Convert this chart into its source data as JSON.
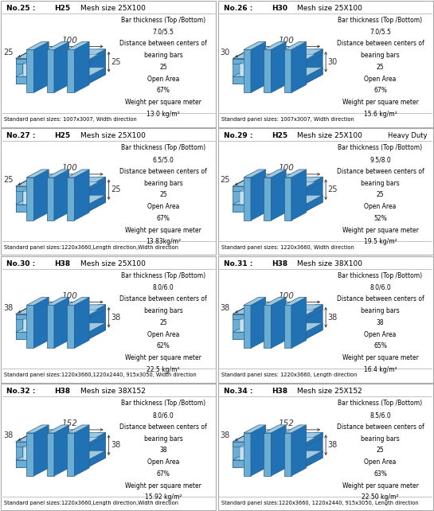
{
  "panels": [
    {
      "no": "No.25",
      "h": "H25",
      "mesh": "Mesh size 25X100",
      "heavy_duty": false,
      "bar_thickness": "7.0/5.5",
      "center_distance": "25",
      "open_area": "67%",
      "weight": "13.0 kg/m²",
      "standard": "Standard panel sizes: 1007x3007, Width direction",
      "dim_side": "25",
      "dim_long": "100",
      "row": 0,
      "col": 0
    },
    {
      "no": "No.26",
      "h": "H30",
      "mesh": "Mesh size 25X100",
      "heavy_duty": false,
      "bar_thickness": "7.0/5.5",
      "center_distance": "25",
      "open_area": "67%",
      "weight": "15.6 kg/m²",
      "standard": "Standard panel sizes: 1007x3007, Width direction",
      "dim_side": "30",
      "dim_long": "100",
      "row": 0,
      "col": 1
    },
    {
      "no": "No.27",
      "h": "H25",
      "mesh": "Mesh size 25X100",
      "heavy_duty": false,
      "bar_thickness": "6.5/5.0",
      "center_distance": "25",
      "open_area": "67%",
      "weight": "13.83kg/m²",
      "standard": "Standard panel sizes:1220x3660,Length direction,Width direction",
      "dim_side": "25",
      "dim_long": "100",
      "row": 1,
      "col": 0
    },
    {
      "no": "No.29",
      "h": "H25",
      "mesh": "Mesh size 25X100",
      "heavy_duty": true,
      "bar_thickness": "9.5/8.0",
      "center_distance": "25",
      "open_area": "52%",
      "weight": "19.5 kg/m²",
      "standard": "Standard panel sizes: 1220x3660, Width direction",
      "dim_side": "25",
      "dim_long": "100",
      "row": 1,
      "col": 1
    },
    {
      "no": "No.30",
      "h": "H38",
      "mesh": "Mesh size 25X100",
      "heavy_duty": false,
      "bar_thickness": "8.0/6.0",
      "center_distance": "25",
      "open_area": "62%",
      "weight": "22.5 kg/m²",
      "standard": "Standard panel sizes:1220x3660,1220x2440, 915x3050, Width direction",
      "dim_side": "38",
      "dim_long": "100",
      "row": 2,
      "col": 0
    },
    {
      "no": "No.31",
      "h": "H38",
      "mesh": "Mesh size 38X100",
      "heavy_duty": false,
      "bar_thickness": "8.0/6.0",
      "center_distance": "38",
      "open_area": "65%",
      "weight": "16.4 kg/m²",
      "standard": "Standard panel sizes: 1220x3660, Length direction",
      "dim_side": "38",
      "dim_long": "100",
      "row": 2,
      "col": 1
    },
    {
      "no": "No.32",
      "h": "H38",
      "mesh": "Mesh size 38X152",
      "heavy_duty": false,
      "bar_thickness": "8.0/6.0",
      "center_distance": "38",
      "open_area": "67%",
      "weight": "15.92 kg/m²",
      "standard": "Standard panel sizes:1220x3660,Length direction,Width direction",
      "dim_side": "38",
      "dim_long": "152",
      "row": 3,
      "col": 0
    },
    {
      "no": "No.34",
      "h": "H38",
      "mesh": "Mesh size 25X152",
      "heavy_duty": false,
      "bar_thickness": "8.5/6.0",
      "center_distance": "25",
      "open_area": "63%",
      "weight": "22.50 kg/m²",
      "standard": "Standard panel sizes:1220x3660, 1220x2440, 915x3050, Length direction",
      "dim_side": "38",
      "dim_long": "152",
      "row": 3,
      "col": 1
    }
  ],
  "bg_color": "#ffffff",
  "face_color": "#6aaed6",
  "top_color": "#9ecae1",
  "dark_color": "#2171b5",
  "edge_color": "#2c5f8a",
  "border_color": "#aaaaaa",
  "text_color": "#000000"
}
